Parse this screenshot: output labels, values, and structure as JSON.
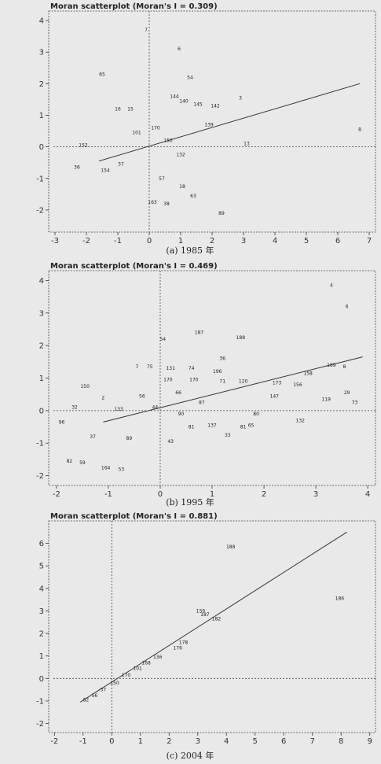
{
  "chart_data": [
    {
      "type": "scatter",
      "title": "Moran scatterplot (Moran's I = 0.309)",
      "caption": "(a) 1985 年",
      "xlim": [
        -3.2,
        7.2
      ],
      "ylim": [
        -2.7,
        4.3
      ],
      "xticks": [
        -3,
        -2,
        -1,
        0,
        1,
        2,
        3,
        4,
        5,
        6,
        7
      ],
      "yticks": [
        -2,
        -1,
        0,
        1,
        2,
        3,
        4
      ],
      "fit_line": {
        "x": [
          -1.6,
          6.7
        ],
        "y": [
          -0.45,
          2.0
        ]
      },
      "points": [
        {
          "x": -0.1,
          "y": 3.7,
          "label": "7"
        },
        {
          "x": 0.95,
          "y": 3.1,
          "label": "6"
        },
        {
          "x": -1.5,
          "y": 2.3,
          "label": "65"
        },
        {
          "x": 1.3,
          "y": 2.2,
          "label": "54"
        },
        {
          "x": 0.8,
          "y": 1.6,
          "label": "144"
        },
        {
          "x": 1.1,
          "y": 1.45,
          "label": "140"
        },
        {
          "x": 1.55,
          "y": 1.35,
          "label": "145"
        },
        {
          "x": 2.1,
          "y": 1.3,
          "label": "142"
        },
        {
          "x": 2.9,
          "y": 1.55,
          "label": "3"
        },
        {
          "x": -1.0,
          "y": 1.2,
          "label": "16"
        },
        {
          "x": -0.6,
          "y": 1.2,
          "label": "15"
        },
        {
          "x": 1.9,
          "y": 0.7,
          "label": "139"
        },
        {
          "x": 6.7,
          "y": 0.55,
          "label": "8"
        },
        {
          "x": 3.1,
          "y": 0.1,
          "label": "13"
        },
        {
          "x": -2.1,
          "y": 0.05,
          "label": "152"
        },
        {
          "x": 1.0,
          "y": -0.25,
          "label": "132"
        },
        {
          "x": -2.3,
          "y": -0.65,
          "label": "36"
        },
        {
          "x": 1.05,
          "y": -1.25,
          "label": "18"
        },
        {
          "x": 1.4,
          "y": -1.55,
          "label": "63"
        },
        {
          "x": 0.1,
          "y": -1.75,
          "label": "163"
        },
        {
          "x": 0.55,
          "y": -1.8,
          "label": "38"
        },
        {
          "x": 2.3,
          "y": -2.1,
          "label": "89"
        },
        {
          "x": 0.2,
          "y": 0.6,
          "label": "170"
        },
        {
          "x": -0.4,
          "y": 0.45,
          "label": "101"
        },
        {
          "x": 0.6,
          "y": 0.2,
          "label": "150"
        },
        {
          "x": -0.9,
          "y": -0.55,
          "label": "37"
        },
        {
          "x": 0.4,
          "y": -1.0,
          "label": "57"
        },
        {
          "x": -1.4,
          "y": -0.75,
          "label": "154"
        }
      ]
    },
    {
      "type": "scatter",
      "title": "Moran scatterplot (Moran's I = 0.469)",
      "caption": "(b) 1995 年",
      "xlim": [
        -2.15,
        4.15
      ],
      "ylim": [
        -2.3,
        4.3
      ],
      "xticks": [
        -2,
        -1,
        0,
        1,
        2,
        3,
        4
      ],
      "yticks": [
        -2,
        -1,
        0,
        1,
        2,
        3,
        4
      ],
      "fit_line": {
        "x": [
          -1.1,
          3.9
        ],
        "y": [
          -0.35,
          1.65
        ]
      },
      "points": [
        {
          "x": 3.3,
          "y": 3.85,
          "label": "4"
        },
        {
          "x": 3.6,
          "y": 3.2,
          "label": "6"
        },
        {
          "x": 0.05,
          "y": 2.2,
          "label": "54"
        },
        {
          "x": 0.75,
          "y": 2.4,
          "label": "187"
        },
        {
          "x": 1.55,
          "y": 2.25,
          "label": "188"
        },
        {
          "x": 1.2,
          "y": 1.6,
          "label": "36"
        },
        {
          "x": 3.3,
          "y": 1.4,
          "label": "189"
        },
        {
          "x": 3.55,
          "y": 1.35,
          "label": "8"
        },
        {
          "x": 2.85,
          "y": 1.15,
          "label": "158"
        },
        {
          "x": -0.45,
          "y": 1.35,
          "label": "7"
        },
        {
          "x": -0.2,
          "y": 1.35,
          "label": "75"
        },
        {
          "x": 0.2,
          "y": 1.3,
          "label": "131"
        },
        {
          "x": 0.6,
          "y": 1.3,
          "label": "74"
        },
        {
          "x": 1.1,
          "y": 1.2,
          "label": "196"
        },
        {
          "x": 0.15,
          "y": 0.95,
          "label": "170"
        },
        {
          "x": 0.65,
          "y": 0.95,
          "label": "170"
        },
        {
          "x": 1.2,
          "y": 0.9,
          "label": "71"
        },
        {
          "x": 1.6,
          "y": 0.9,
          "label": "120"
        },
        {
          "x": 2.25,
          "y": 0.85,
          "label": "173"
        },
        {
          "x": 2.65,
          "y": 0.8,
          "label": "156"
        },
        {
          "x": -1.45,
          "y": 0.75,
          "label": "150"
        },
        {
          "x": 3.6,
          "y": 0.55,
          "label": "29"
        },
        {
          "x": 3.2,
          "y": 0.35,
          "label": "119"
        },
        {
          "x": 3.75,
          "y": 0.25,
          "label": "73"
        },
        {
          "x": 2.2,
          "y": 0.45,
          "label": "147"
        },
        {
          "x": 2.7,
          "y": -0.3,
          "label": "132"
        },
        {
          "x": 1.85,
          "y": -0.1,
          "label": "80"
        },
        {
          "x": -1.1,
          "y": 0.4,
          "label": "2"
        },
        {
          "x": -1.65,
          "y": 0.1,
          "label": "32"
        },
        {
          "x": -1.9,
          "y": -0.35,
          "label": "96"
        },
        {
          "x": -1.75,
          "y": -1.55,
          "label": "82"
        },
        {
          "x": -1.5,
          "y": -1.6,
          "label": "59"
        },
        {
          "x": -1.05,
          "y": -1.75,
          "label": "164"
        },
        {
          "x": -0.75,
          "y": -1.8,
          "label": "53"
        },
        {
          "x": -1.3,
          "y": -0.8,
          "label": "37"
        },
        {
          "x": 0.6,
          "y": -0.5,
          "label": "81"
        },
        {
          "x": 1.0,
          "y": -0.45,
          "label": "137"
        },
        {
          "x": 1.3,
          "y": -0.75,
          "label": "33"
        },
        {
          "x": 1.6,
          "y": -0.5,
          "label": "81"
        },
        {
          "x": 1.75,
          "y": -0.45,
          "label": "65"
        },
        {
          "x": -0.6,
          "y": -0.85,
          "label": "89"
        },
        {
          "x": 0.2,
          "y": -0.95,
          "label": "43"
        },
        {
          "x": 0.35,
          "y": 0.55,
          "label": "66"
        },
        {
          "x": -0.35,
          "y": 0.45,
          "label": "56"
        },
        {
          "x": -0.1,
          "y": 0.1,
          "label": "44"
        },
        {
          "x": -0.8,
          "y": 0.05,
          "label": "133"
        },
        {
          "x": 0.8,
          "y": 0.25,
          "label": "87"
        },
        {
          "x": 0.4,
          "y": -0.1,
          "label": "90"
        }
      ]
    },
    {
      "type": "scatter",
      "title": "Moran scatterplot (Moran's I = 0.881)",
      "caption": "(c) 2004 年",
      "xlim": [
        -2.2,
        9.2
      ],
      "ylim": [
        -2.4,
        7.0
      ],
      "xticks": [
        -2,
        -1,
        0,
        1,
        2,
        3,
        4,
        5,
        6,
        7,
        8,
        9
      ],
      "yticks": [
        -2,
        -1,
        0,
        1,
        2,
        3,
        4,
        5,
        6
      ],
      "fit_line": {
        "x": [
          -1.1,
          8.2
        ],
        "y": [
          -1.05,
          6.5
        ]
      },
      "points": [
        {
          "x": 4.15,
          "y": 5.85,
          "label": "188"
        },
        {
          "x": 7.95,
          "y": 3.55,
          "label": "186"
        },
        {
          "x": 3.1,
          "y": 3.0,
          "label": "159"
        },
        {
          "x": 3.25,
          "y": 2.85,
          "label": "187"
        },
        {
          "x": 3.65,
          "y": 2.65,
          "label": "182"
        },
        {
          "x": 2.5,
          "y": 1.6,
          "label": "178"
        },
        {
          "x": 2.3,
          "y": 1.35,
          "label": "176"
        },
        {
          "x": 1.6,
          "y": 0.95,
          "label": "136"
        },
        {
          "x": 1.2,
          "y": 0.7,
          "label": "168"
        },
        {
          "x": 0.9,
          "y": 0.45,
          "label": "101"
        },
        {
          "x": 0.5,
          "y": 0.15,
          "label": "170"
        },
        {
          "x": 0.1,
          "y": -0.2,
          "label": "150"
        },
        {
          "x": -0.3,
          "y": -0.5,
          "label": "37"
        },
        {
          "x": -0.6,
          "y": -0.75,
          "label": "56"
        },
        {
          "x": -0.9,
          "y": -0.95,
          "label": "82"
        }
      ]
    }
  ]
}
